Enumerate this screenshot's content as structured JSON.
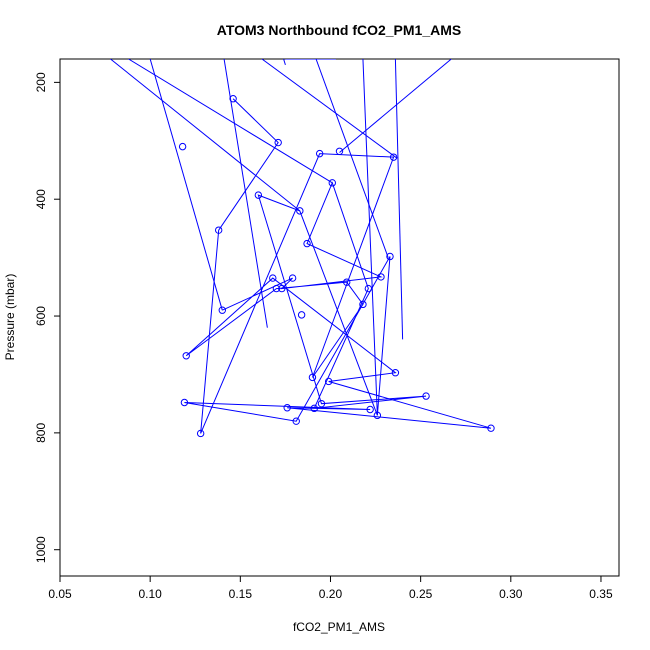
{
  "chart_data": {
    "type": "scatter",
    "title": "ATOM3 Northbound fCO2_PM1_AMS",
    "xlabel": "fCO2_PM1_AMS",
    "ylabel": "Pressure (mbar)",
    "xlim": [
      0.05,
      0.36
    ],
    "ylim": [
      1045,
      160
    ],
    "y_reversed": true,
    "xticks": [
      0.05,
      0.1,
      0.15,
      0.2,
      0.25,
      0.3,
      0.35
    ],
    "xtick_labels": [
      "0.05",
      "0.10",
      "0.15",
      "0.20",
      "0.25",
      "0.30",
      "0.35"
    ],
    "yticks": [
      200,
      400,
      600,
      800,
      1000
    ],
    "ytick_labels": [
      "200",
      "400",
      "600",
      "800",
      "1000"
    ],
    "grid": false,
    "color": "#0000ff",
    "line_segments": [
      [
        [
          0.078,
          160
        ],
        [
          0.183,
          420
        ]
      ],
      [
        [
          0.088,
          160
        ],
        [
          0.201,
          372
        ]
      ],
      [
        [
          0.1,
          160
        ],
        [
          0.14,
          590
        ]
      ],
      [
        [
          0.141,
          160
        ],
        [
          0.165,
          620
        ]
      ],
      [
        [
          0.162,
          160
        ],
        [
          0.237,
          330
        ]
      ],
      [
        [
          0.175,
          160
        ],
        [
          0.203,
          160
        ]
      ],
      [
        [
          0.192,
          160
        ],
        [
          0.232,
          500
        ]
      ],
      [
        [
          0.218,
          160
        ],
        [
          0.226,
          770
        ]
      ],
      [
        [
          0.236,
          160
        ],
        [
          0.24,
          640
        ]
      ],
      [
        [
          0.267,
          160
        ],
        [
          0.205,
          320
        ]
      ],
      [
        [
          0.174,
          160
        ],
        [
          0.175,
          170
        ]
      ]
    ],
    "series": [
      {
        "x": [
          0.146,
          0.171,
          0.138,
          0.128,
          0.194,
          0.235,
          0.19,
          0.218,
          0.209,
          0.17,
          0.12,
          0.168,
          0.236,
          0.199,
          0.289,
          0.176,
          0.222,
          0.119,
          0.181,
          0.233,
          0.226,
          0.183,
          0.16,
          0.195,
          0.253,
          0.191,
          0.221,
          0.201,
          0.187,
          0.228,
          0.173,
          0.179,
          0.14
        ],
        "y": [
          228,
          303,
          453,
          801,
          322,
          328,
          705,
          580,
          542,
          553,
          668,
          535,
          697,
          712,
          792,
          757,
          760,
          748,
          780,
          498,
          770,
          420,
          393,
          750,
          737,
          758,
          553,
          372,
          476,
          533,
          553,
          535,
          590
        ]
      }
    ],
    "points": {
      "x": [
        0.146,
        0.171,
        0.138,
        0.128,
        0.194,
        0.235,
        0.19,
        0.218,
        0.209,
        0.17,
        0.12,
        0.168,
        0.236,
        0.199,
        0.289,
        0.176,
        0.222,
        0.119,
        0.181,
        0.233,
        0.226,
        0.183,
        0.16,
        0.195,
        0.253,
        0.191,
        0.221,
        0.201,
        0.187,
        0.228,
        0.173,
        0.179,
        0.14,
        0.118,
        0.205,
        0.184
      ],
      "y": [
        228,
        303,
        453,
        801,
        322,
        328,
        705,
        580,
        542,
        553,
        668,
        535,
        697,
        712,
        792,
        757,
        760,
        748,
        780,
        498,
        770,
        420,
        393,
        750,
        737,
        758,
        553,
        372,
        476,
        533,
        553,
        535,
        590,
        310,
        318,
        598
      ]
    }
  }
}
